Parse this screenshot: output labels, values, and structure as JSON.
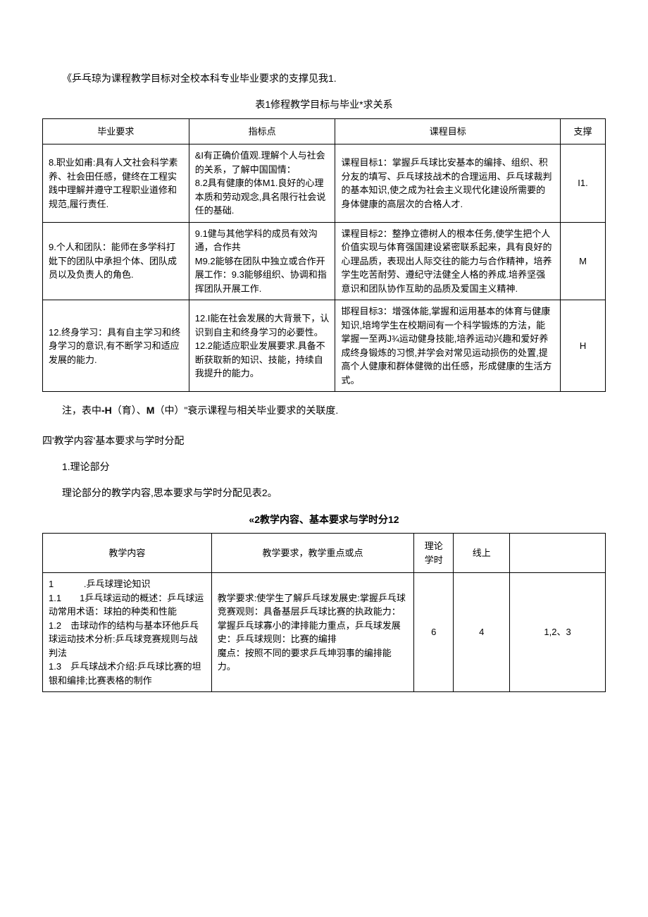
{
  "intro": "《乒乓琼为课程教学目标对全校本科专业毕业要求的支撑见我1.",
  "table1_title": "表1修程教学目标与毕业*求关系",
  "table1": {
    "headers": [
      "毕业要求",
      "指标点",
      "课程目标",
      "支撑"
    ],
    "rows": [
      {
        "c1": "8.职业如甫:具有人文社会科学素养、社会田任感，健终在工程实践中理解并遵守工程职业道修和规范,履行责任.",
        "c2": "&I有正确价值观.理解个人与社会的关系，了解中国国情：\n8.2具有健康的体M1.良好的心理本质和劳动观念,具名限行社会说任的基础.",
        "c3": "课程目标1：掌握乒乓球比安基本的编排、组织、积分友的填写、乒乓球技战术的合理运用、乒乓球裁判的基本知识,使之成为社会主义现代化建设所需要的身体健康的高层次的合格人才.",
        "c4": "I1."
      },
      {
        "c1": "9.个人和团队：能师在多学科打妣下的团队中承担个体、团队成员以及负责人的角色.",
        "c2": "9.1健与其他学科的成员有效沟通，合作共\nM9.2能够在团队中独立或合作开展工作：9.3能够组织、协调和指挥团队开展工作.",
        "c3": "课程目标2：整挣立德树人的根本任务,使学生把个人价值实现与体育强国建设紧密联系起来，具有良好的心理品质，表现出人际交往的能力与合作精神，培养学生吃苦耐劳、遵纪守法健全人格的养成.培养坚强意识和团队协作互助的品质及爱国主义精神.",
        "c4": "M"
      },
      {
        "c1": "12.终身学习：具有自主学习和终身学习的意识,有不断学习和适应发展的能力.",
        "c2": "12.I能在社会发展的大背景下，认识到自主和终身学习的必要性。\n12.2能适应职业发展要求.具备不断获取新的知识、技能，持续自我提升的能力。",
        "c3": "邯程目标3：增强体能,掌握和运用基本的体育与健康知识,培垮学生在校期间有一个科学锻炼的方法，能掌握一至两J¾运动健身技能,培养运动兴趣和爱好养成终身锻炼的习惯,并学会对常见运动损伤的处置,提高个人健康和群体健微的出任感，形成健康的生活方式。",
        "c4": "H"
      }
    ]
  },
  "note": "注，表中-H（育）、M（中）\"衰示课程与相关毕业要求的关联度.",
  "section4": "四'教学内容'基本要求与学时分配",
  "sub1": "1.理论部分",
  "desc1": "理论部分的教学内容,思本要求与学时分配见表2。",
  "table2_title": "«2教学内容、基本要求与学时分12",
  "table2": {
    "headers": [
      "教学内容",
      "教学要求，教学重点或点",
      "理论学时",
      "线上",
      ""
    ],
    "rows": [
      {
        "c1": "1　　　 .乒乓球理论知识\n1.1　　1乒乓球运动的概述：乒乓球运动常用术语：球拍的种类和性能\n1.2　击球动作的结构与基本环他乒乓球运动技术分析:乒乓球竞赛规则与战判法\n1.3　乒乓球战术介绍:乒乓球比赛的坦银和编排;比赛表格的制作",
        "c2": "教学要求:使学生了解乒乓球发展史:掌握乒乓球竞赛观则：具备基层乒乓球比赛的执政能力：掌握乒乓球寡小的津排能力重点，乒乓球发展史：乒乓球规则：比赛的编排\n魔点：按照不同的要求乒乓坤羽事的编排能力。",
        "c3": "6",
        "c4": "4",
        "c5": "1,2、3"
      }
    ]
  }
}
